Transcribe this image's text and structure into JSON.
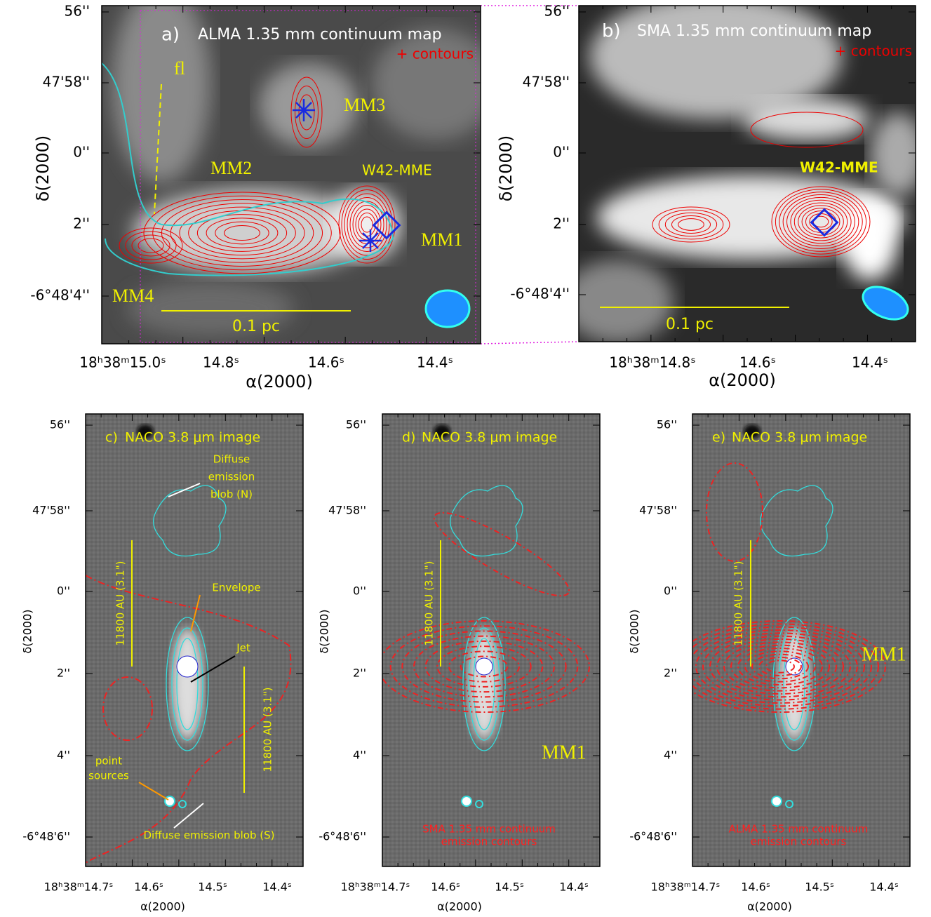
{
  "panels": [
    {
      "label": "a)",
      "title": "ALMA 1.35 mm continuum map",
      "overlay": "+ contours",
      "labels": [
        "fl",
        "MM3",
        "MM2",
        "W42-MME",
        "MM1",
        "MM4"
      ],
      "scale_bars": [
        "0.1 pc"
      ],
      "x_ticks": [
        "18ʰ38ᵐ15.0ˢ",
        "14.8ˢ",
        "14.6ˢ",
        "14.4ˢ"
      ],
      "y_ticks": [
        "56''",
        "47'58''",
        "0''",
        "2''",
        "-6°48'4''"
      ],
      "x_axis": "α(2000)",
      "y_axis": "δ(2000)"
    },
    {
      "label": "b)",
      "title": "SMA 1.35 mm continuum map",
      "overlay": "+ contours",
      "labels": [
        "W42-MME"
      ],
      "scale_bars": [
        "0.1 pc"
      ],
      "x_ticks": [
        "18ʰ38ᵐ14.8ˢ",
        "14.6ˢ",
        "14.4ˢ"
      ],
      "y_ticks": [
        "56''",
        "47'58''",
        "0''",
        "2''",
        "-6°48'4''"
      ],
      "x_axis": "α(2000)",
      "y_axis": "δ(2000)"
    },
    {
      "label": "c)",
      "title": "NACO 3.8 μm image",
      "labels": [
        "Diffuse",
        "emission",
        "blob (N)",
        "Envelope",
        "Jet",
        "point",
        "sources",
        "Diffuse emission blob (S)"
      ],
      "scale_bars": [
        "11800 AU (3.1\")",
        "11800 AU (3.1\")"
      ],
      "x_ticks": [
        "18ʰ38ᵐ14.7ˢ",
        "14.6ˢ",
        "14.5ˢ",
        "14.4ˢ"
      ],
      "y_ticks": [
        "56''",
        "47'58''",
        "0''",
        "2''",
        "4''",
        "-6°48'6''"
      ],
      "x_axis": "α(2000)",
      "y_axis": "δ(2000)"
    },
    {
      "label": "d)",
      "title": "NACO 3.8 μm image",
      "labels": [
        "MM1",
        "SMA 1.35 mm continuum",
        "emission contours"
      ],
      "scale_bars": [
        "11800 AU (3.1\")"
      ],
      "x_ticks": [
        "18ʰ38ᵐ14.7ˢ",
        "14.6ˢ",
        "14.5ˢ",
        "14.4ˢ"
      ],
      "y_ticks": [
        "56''",
        "47'58''",
        "0''",
        "2''",
        "4''",
        "-6°48'6''"
      ],
      "x_axis": "α(2000)",
      "y_axis": "δ(2000)"
    },
    {
      "label": "e)",
      "title": "NACO 3.8 μm image",
      "labels": [
        "MM1",
        "ALMA 1.35 mm continuum",
        "emission contours"
      ],
      "scale_bars": [
        "11800 AU (3.1\")"
      ],
      "x_ticks": [
        "18ʰ38ᵐ14.7ˢ",
        "14.6ˢ",
        "14.5ˢ",
        "14.4ˢ"
      ],
      "y_ticks": [
        "56''",
        "47'58''",
        "0''",
        "2''",
        "4''",
        "-6°48'6''"
      ],
      "x_axis": "α(2000)",
      "y_axis": "δ(2000)"
    }
  ]
}
